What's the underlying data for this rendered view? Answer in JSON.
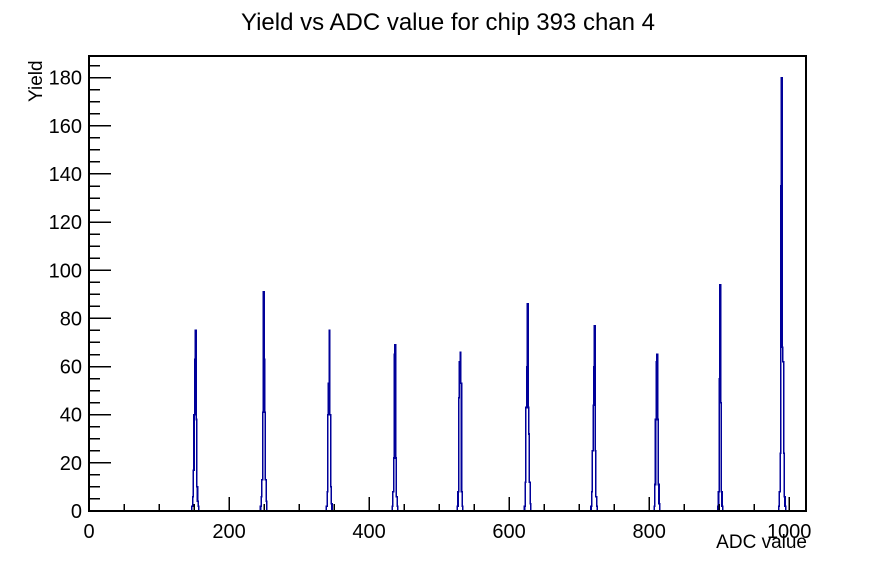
{
  "title": "Yield vs ADC value for chip 393 chan 4",
  "chart_data": {
    "type": "bar",
    "subtype": "root-histogram-outline",
    "title": "Yield vs ADC value for chip 393 chan 4",
    "xlabel": "ADC value",
    "ylabel": "Yield",
    "xlim": [
      0,
      1024
    ],
    "ylim": [
      0,
      189
    ],
    "x_major_ticks": [
      0,
      200,
      400,
      600,
      800,
      1000
    ],
    "x_minor_step": 50,
    "y_major_ticks": [
      0,
      20,
      40,
      60,
      80,
      100,
      120,
      140,
      160,
      180
    ],
    "y_minor_step": 5,
    "grid": false,
    "legend": false,
    "background_color": "#ffffff",
    "axis_color": "#000000",
    "line_color": "#000099",
    "peaks": [
      {
        "adc": 152,
        "yield": 75
      },
      {
        "adc": 249,
        "yield": 91
      },
      {
        "adc": 343,
        "yield": 75
      },
      {
        "adc": 437,
        "yield": 69
      },
      {
        "adc": 530,
        "yield": 66
      },
      {
        "adc": 626,
        "yield": 86
      },
      {
        "adc": 722,
        "yield": 77
      },
      {
        "adc": 811,
        "yield": 65
      },
      {
        "adc": 901,
        "yield": 94
      },
      {
        "adc": 989,
        "yield": 180
      }
    ],
    "bins": [
      [
        147,
        2
      ],
      [
        148,
        6
      ],
      [
        149,
        17
      ],
      [
        150,
        40
      ],
      [
        151,
        63
      ],
      [
        152,
        75
      ],
      [
        153,
        38
      ],
      [
        154,
        10
      ],
      [
        155,
        4
      ],
      [
        156,
        2
      ],
      [
        245,
        2
      ],
      [
        246,
        6
      ],
      [
        247,
        13
      ],
      [
        248,
        41
      ],
      [
        249,
        91
      ],
      [
        250,
        63
      ],
      [
        251,
        41
      ],
      [
        252,
        13
      ],
      [
        253,
        4
      ],
      [
        339,
        2
      ],
      [
        340,
        8
      ],
      [
        341,
        40
      ],
      [
        342,
        53
      ],
      [
        343,
        75
      ],
      [
        344,
        40
      ],
      [
        345,
        10
      ],
      [
        346,
        3
      ],
      [
        433,
        2
      ],
      [
        434,
        8
      ],
      [
        435,
        22
      ],
      [
        436,
        65
      ],
      [
        437,
        69
      ],
      [
        438,
        22
      ],
      [
        439,
        6
      ],
      [
        440,
        2
      ],
      [
        526,
        2
      ],
      [
        527,
        8
      ],
      [
        528,
        47
      ],
      [
        529,
        62
      ],
      [
        530,
        66
      ],
      [
        531,
        53
      ],
      [
        532,
        8
      ],
      [
        533,
        2
      ],
      [
        622,
        2
      ],
      [
        623,
        12
      ],
      [
        624,
        43
      ],
      [
        625,
        60
      ],
      [
        626,
        86
      ],
      [
        627,
        43
      ],
      [
        628,
        32
      ],
      [
        629,
        12
      ],
      [
        630,
        3
      ],
      [
        717,
        2
      ],
      [
        718,
        8
      ],
      [
        719,
        25
      ],
      [
        720,
        44
      ],
      [
        721,
        60
      ],
      [
        722,
        77
      ],
      [
        723,
        25
      ],
      [
        724,
        6
      ],
      [
        725,
        2
      ],
      [
        807,
        2
      ],
      [
        808,
        11
      ],
      [
        809,
        38
      ],
      [
        810,
        62
      ],
      [
        811,
        65
      ],
      [
        812,
        38
      ],
      [
        813,
        11
      ],
      [
        814,
        3
      ],
      [
        898,
        2
      ],
      [
        899,
        8
      ],
      [
        900,
        55
      ],
      [
        901,
        94
      ],
      [
        902,
        45
      ],
      [
        903,
        8
      ],
      [
        904,
        2
      ],
      [
        985,
        2
      ],
      [
        986,
        8
      ],
      [
        987,
        24
      ],
      [
        988,
        135
      ],
      [
        989,
        180
      ],
      [
        990,
        68
      ],
      [
        991,
        62
      ],
      [
        992,
        24
      ],
      [
        993,
        6
      ],
      [
        994,
        2
      ]
    ]
  }
}
